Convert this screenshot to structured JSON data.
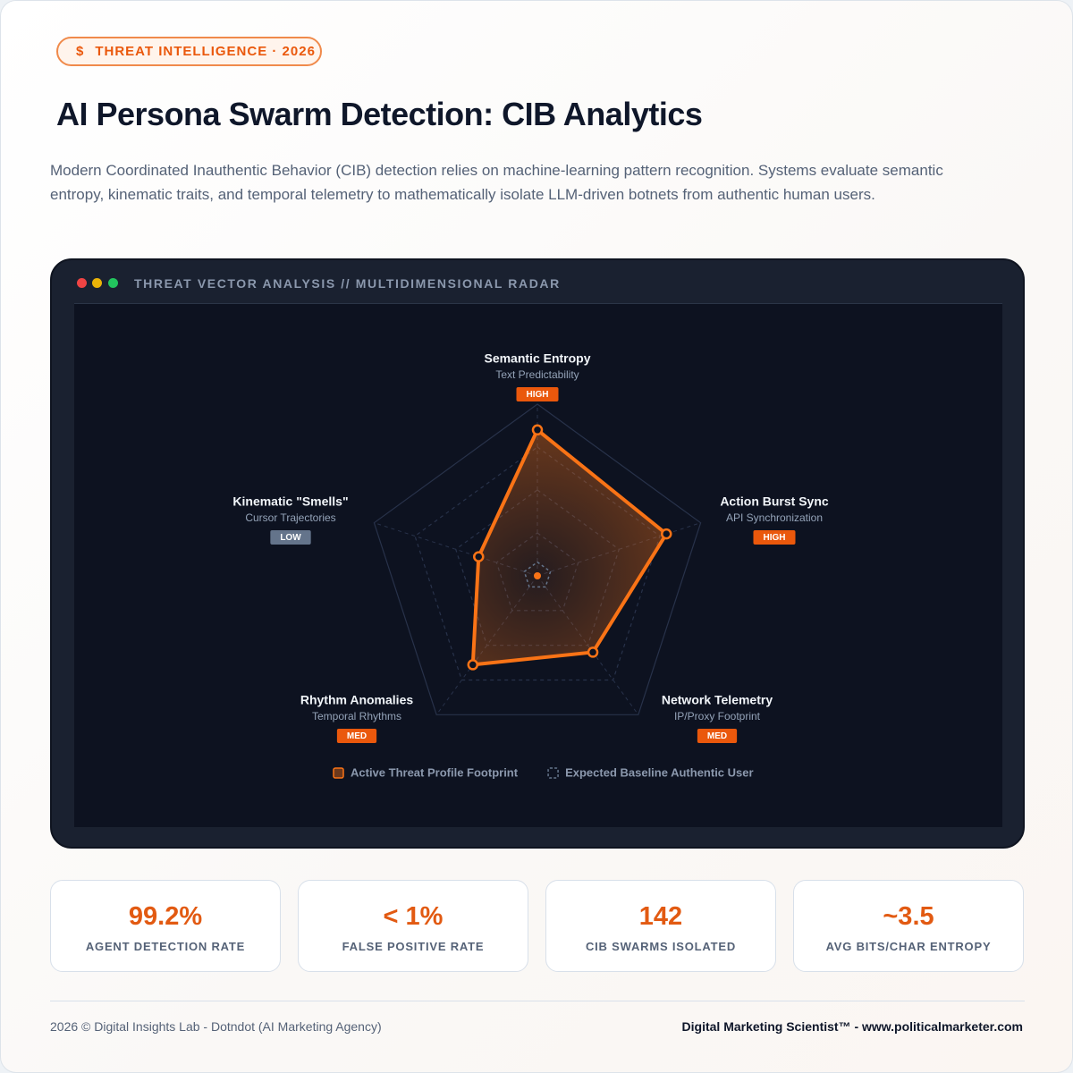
{
  "badge": "THREAT INTELLIGENCE · 2026",
  "badge_icon": "$",
  "title": "AI Persona Swarm Detection: CIB Analytics",
  "description": "Modern Coordinated Inauthentic Behavior (CIB) detection relies on machine-learning pattern recognition. Systems evaluate semantic entropy, kinematic traits, and temporal telemetry to mathematically isolate LLM-driven botnets from authentic human users.",
  "panel_title": "THREAT VECTOR ANALYSIS // MULTIDIMENSIONAL RADAR",
  "chart_data": {
    "type": "radar",
    "categories": [
      "Semantic Entropy",
      "Action Burst Sync",
      "Network Telemetry",
      "Rhythm Anomalies",
      "Kinematic \"Smells\""
    ],
    "subtitles": [
      "Text Predictability",
      "API Synchronization",
      "IP/Proxy Footprint",
      "Temporal Rhythms",
      "Cursor Trajectories"
    ],
    "levels": [
      "HIGH",
      "HIGH",
      "MED",
      "MED",
      "LOW"
    ],
    "level_colors": [
      "#ea580c",
      "#ea580c",
      "#ea580c",
      "#ea580c",
      "#64748b"
    ],
    "series": [
      {
        "name": "Active Threat Profile Footprint",
        "color": "#f97316",
        "values": [
          85,
          79,
          55,
          64,
          36
        ]
      },
      {
        "name": "Expected Baseline Authentic User",
        "color": "#64748b",
        "values": [
          8,
          8,
          8,
          8,
          8
        ]
      }
    ],
    "rlim": [
      0,
      100
    ],
    "rticks": [
      25,
      50,
      75,
      100
    ],
    "grid": true
  },
  "stats": [
    {
      "value": "99.2%",
      "label": "AGENT DETECTION RATE"
    },
    {
      "value": "< 1%",
      "label": "FALSE POSITIVE RATE"
    },
    {
      "value": "142",
      "label": "CIB SWARMS ISOLATED"
    },
    {
      "value": "~3.5",
      "label": "AVG BITS/CHAR ENTROPY"
    }
  ],
  "footer": {
    "left": "2026 © Digital Insights Lab - Dotndot (AI Marketing Agency)",
    "right": "Digital Marketing Scientist™ - www.politicalmarketer.com"
  }
}
